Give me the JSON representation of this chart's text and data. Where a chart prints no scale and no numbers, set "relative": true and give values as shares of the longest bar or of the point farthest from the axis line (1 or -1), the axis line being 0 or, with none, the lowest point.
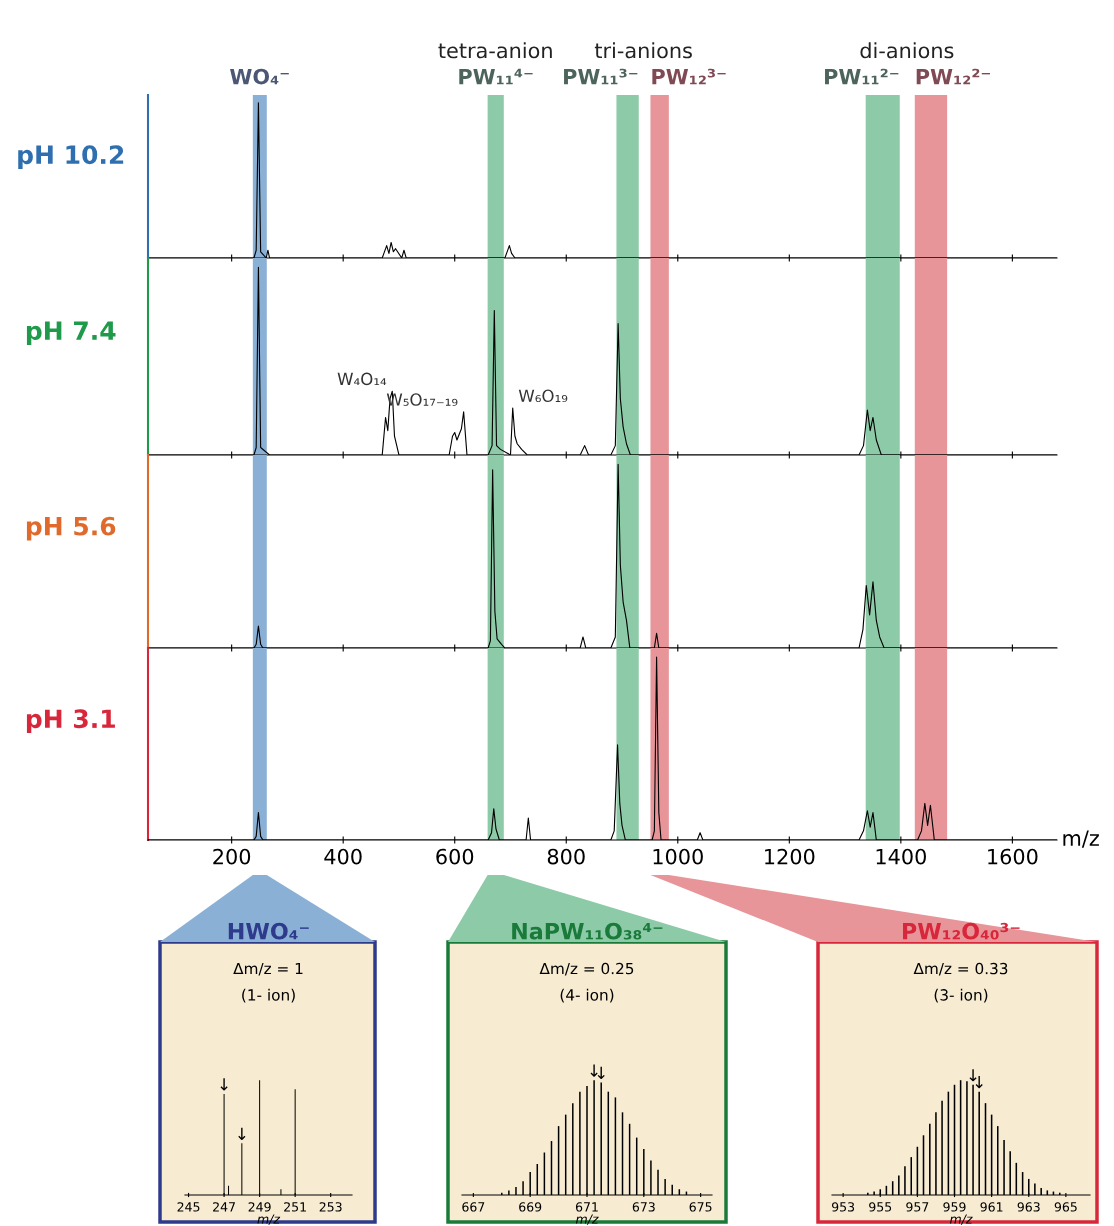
{
  "chart_data": [
    {
      "type": "line",
      "relative": true,
      "ylabel": "pH 10.2",
      "xlim": [
        50,
        1680
      ],
      "xticks": [
        200,
        400,
        600,
        800,
        1000,
        1200,
        1400,
        1600
      ],
      "tick_labels": false,
      "grid": false,
      "marker": "none",
      "line_style": "solid",
      "annotations": [
        "tetra-anion",
        "tri-anions",
        "di-anions"
      ],
      "bands": [
        {
          "axis": "x",
          "from": 238,
          "to": 263,
          "label": "WO₄⁻",
          "color": "#8ab0d6"
        },
        {
          "axis": "x",
          "from": 659,
          "to": 688,
          "label": "PW₁₁⁴⁻",
          "color": "#8ccaa8"
        },
        {
          "axis": "x",
          "from": 890,
          "to": 930,
          "label": "PW₁₁³⁻",
          "color": "#8ccaa8"
        },
        {
          "axis": "x",
          "from": 951,
          "to": 984,
          "label": "PW₁₂³⁻",
          "color": "#e8959a"
        },
        {
          "axis": "x",
          "from": 1337,
          "to": 1398,
          "label": "PW₁₁²⁻",
          "color": "#8ccaa8"
        },
        {
          "axis": "x",
          "from": 1425,
          "to": 1483,
          "label": "PW₁₂²⁻",
          "color": "#e8959a"
        }
      ],
      "series": [
        {
          "color": "#000000",
          "x": [
            50,
            240,
            244,
            248,
            252,
            262,
            265,
            268,
            470,
            478,
            482,
            486,
            490,
            494,
            505,
            509,
            513,
            690,
            698,
            702,
            708,
            1680
          ],
          "values": [
            0,
            0,
            0.05,
            1.0,
            0.04,
            0,
            0.05,
            0,
            0,
            0.08,
            0.03,
            0.1,
            0.04,
            0.06,
            0,
            0.05,
            0,
            0,
            0.08,
            0.03,
            0,
            0
          ]
        }
      ]
    },
    {
      "type": "line",
      "relative": true,
      "ylabel": "pH 7.4",
      "xlim": [
        50,
        1680
      ],
      "xticks": [
        200,
        400,
        600,
        800,
        1000,
        1200,
        1400,
        1600
      ],
      "tick_labels": false,
      "grid": false,
      "marker": "none",
      "line_style": "solid",
      "annotations": [
        {
          "text": "W₄O₁₄",
          "x": 488,
          "y": 0.34
        },
        {
          "text": "W₅O₁₇₋₁₉",
          "x": 616,
          "y": 0.23
        },
        {
          "text": "W₆O₁₉",
          "x": 704,
          "y": 0.25
        }
      ],
      "bands": [
        {
          "axis": "x",
          "from": 238,
          "to": 263,
          "color": "#8ab0d6"
        },
        {
          "axis": "x",
          "from": 659,
          "to": 688,
          "color": "#8ccaa8"
        },
        {
          "axis": "x",
          "from": 890,
          "to": 930,
          "color": "#8ccaa8"
        },
        {
          "axis": "x",
          "from": 951,
          "to": 984,
          "color": "#e8959a"
        },
        {
          "axis": "x",
          "from": 1337,
          "to": 1398,
          "color": "#8ccaa8"
        },
        {
          "axis": "x",
          "from": 1425,
          "to": 1483,
          "color": "#e8959a"
        }
      ],
      "series": [
        {
          "color": "#000000",
          "x": [
            50,
            240,
            244,
            248,
            252,
            268,
            470,
            476,
            480,
            484,
            488,
            492,
            500,
            590,
            596,
            600,
            604,
            612,
            616,
            622,
            660,
            667,
            671,
            675,
            682,
            700,
            704,
            708,
            712,
            720,
            730,
            825,
            833,
            840,
            880,
            888,
            893,
            897,
            902,
            908,
            915,
            1325,
            1333,
            1340,
            1345,
            1350,
            1356,
            1365,
            1680
          ],
          "values": [
            0,
            0,
            0.04,
            1.0,
            0.04,
            0,
            0,
            0.2,
            0.13,
            0.3,
            0.34,
            0.1,
            0,
            0,
            0.1,
            0.12,
            0.08,
            0.14,
            0.23,
            0,
            0,
            0.05,
            0.77,
            0.05,
            0.03,
            0,
            0.25,
            0.1,
            0.06,
            0.03,
            0,
            0,
            0.05,
            0,
            0,
            0.05,
            0.7,
            0.3,
            0.15,
            0.06,
            0,
            0,
            0.05,
            0.24,
            0.13,
            0.2,
            0.08,
            0,
            0
          ]
        }
      ]
    },
    {
      "type": "line",
      "relative": true,
      "ylabel": "pH 5.6",
      "xlim": [
        50,
        1680
      ],
      "xticks": [
        200,
        400,
        600,
        800,
        1000,
        1200,
        1400,
        1600
      ],
      "tick_labels": false,
      "grid": false,
      "marker": "none",
      "line_style": "solid",
      "bands": [
        {
          "axis": "x",
          "from": 238,
          "to": 263,
          "color": "#8ab0d6"
        },
        {
          "axis": "x",
          "from": 659,
          "to": 688,
          "color": "#8ccaa8"
        },
        {
          "axis": "x",
          "from": 890,
          "to": 930,
          "color": "#8ccaa8"
        },
        {
          "axis": "x",
          "from": 951,
          "to": 984,
          "color": "#e8959a"
        },
        {
          "axis": "x",
          "from": 1337,
          "to": 1398,
          "color": "#8ccaa8"
        },
        {
          "axis": "x",
          "from": 1425,
          "to": 1483,
          "color": "#e8959a"
        }
      ],
      "series": [
        {
          "color": "#000000",
          "x": [
            50,
            240,
            244,
            248,
            252,
            256,
            660,
            664,
            668,
            672,
            676,
            684,
            690,
            825,
            830,
            835,
            880,
            888,
            893,
            897,
            902,
            908,
            914,
            958,
            962,
            966,
            1325,
            1332,
            1338,
            1344,
            1350,
            1356,
            1362,
            1370,
            1680
          ],
          "values": [
            0,
            0,
            0.02,
            0.12,
            0.02,
            0,
            0,
            0.04,
            0.97,
            0.2,
            0.05,
            0.02,
            0,
            0,
            0.06,
            0,
            0,
            0.06,
            1.0,
            0.45,
            0.25,
            0.15,
            0,
            0,
            0.08,
            0,
            0,
            0.1,
            0.34,
            0.18,
            0.36,
            0.15,
            0.06,
            0,
            0
          ]
        }
      ]
    },
    {
      "type": "line",
      "relative": true,
      "ylabel": "pH 3.1",
      "xlabel": "m/z",
      "xlim": [
        50,
        1680
      ],
      "xticks": [
        200,
        400,
        600,
        800,
        1000,
        1200,
        1400,
        1600
      ],
      "tick_labels": "x",
      "grid": false,
      "marker": "none",
      "line_style": "solid",
      "bands": [
        {
          "axis": "x",
          "from": 238,
          "to": 263,
          "color": "#8ab0d6"
        },
        {
          "axis": "x",
          "from": 659,
          "to": 688,
          "color": "#8ccaa8"
        },
        {
          "axis": "x",
          "from": 890,
          "to": 930,
          "color": "#8ccaa8"
        },
        {
          "axis": "x",
          "from": 951,
          "to": 984,
          "color": "#e8959a"
        },
        {
          "axis": "x",
          "from": 1337,
          "to": 1398,
          "color": "#8ccaa8"
        },
        {
          "axis": "x",
          "from": 1425,
          "to": 1483,
          "color": "#e8959a"
        }
      ],
      "series": [
        {
          "color": "#000000",
          "x": [
            50,
            240,
            244,
            248,
            252,
            256,
            660,
            666,
            670,
            674,
            680,
            728,
            732,
            736,
            880,
            886,
            892,
            896,
            900,
            906,
            954,
            958,
            962,
            966,
            970,
            1035,
            1040,
            1045,
            1325,
            1333,
            1340,
            1345,
            1350,
            1356,
            1430,
            1437,
            1443,
            1448,
            1453,
            1460,
            1680
          ],
          "values": [
            0,
            0,
            0.02,
            0.15,
            0.02,
            0,
            0,
            0.04,
            0.17,
            0.06,
            0,
            0,
            0.12,
            0,
            0,
            0.05,
            0.52,
            0.2,
            0.08,
            0,
            0,
            0.05,
            1.0,
            0.15,
            0,
            0,
            0.04,
            0,
            0,
            0.05,
            0.16,
            0.07,
            0.15,
            0,
            0,
            0.05,
            0.2,
            0.08,
            0.19,
            0,
            0
          ]
        }
      ]
    },
    {
      "type": "bar",
      "relative": true,
      "title": "HWO₄⁻",
      "xlabel": "m/z",
      "xlim": [
        244.8,
        254.2
      ],
      "xticks": [
        245,
        247,
        249,
        251,
        253
      ],
      "tick_labels": "x",
      "grid": false,
      "annotations": [
        "Δm/z = 1",
        "(1- ion)",
        {
          "text": "↓",
          "x": 247,
          "y": 0.88
        },
        {
          "text": "↓",
          "x": 248,
          "y": 0.45
        }
      ],
      "series": [
        {
          "color": "#000000",
          "x": [
            247,
            247.25,
            248,
            249,
            250.2,
            251
          ],
          "values": [
            0.88,
            0.08,
            0.45,
            1.0,
            0.05,
            0.92
          ]
        }
      ]
    },
    {
      "type": "bar",
      "relative": true,
      "title": "NaPW₁₁O₃₈⁴⁻",
      "xlabel": "m/z",
      "xlim": [
        666.6,
        675.4
      ],
      "xticks": [
        667,
        669,
        671,
        673,
        675
      ],
      "tick_labels": "x",
      "grid": false,
      "annotations": [
        "Δm/z = 0.25",
        "(4- ion)",
        {
          "text": "↓",
          "x": 671.25,
          "y": 1.0
        },
        {
          "text": "↓",
          "x": 671.5,
          "y": 0.98
        }
      ],
      "series": [
        {
          "color": "#000000",
          "x": [
            668.0,
            668.25,
            668.5,
            668.75,
            669.0,
            669.25,
            669.5,
            669.75,
            670.0,
            670.25,
            670.5,
            670.75,
            671.0,
            671.25,
            671.5,
            671.75,
            672.0,
            672.25,
            672.5,
            672.75,
            673.0,
            673.25,
            673.5,
            673.75,
            674.0,
            674.25,
            674.5
          ],
          "values": [
            0.02,
            0.04,
            0.07,
            0.12,
            0.2,
            0.27,
            0.37,
            0.47,
            0.6,
            0.7,
            0.8,
            0.9,
            0.95,
            1.0,
            0.98,
            0.9,
            0.85,
            0.72,
            0.62,
            0.5,
            0.4,
            0.3,
            0.22,
            0.14,
            0.09,
            0.05,
            0.03
          ]
        }
      ]
    },
    {
      "type": "bar",
      "relative": true,
      "title": "PW₁₂O₄₀³⁻",
      "xlabel": "m/z",
      "xlim": [
        952.4,
        966.3
      ],
      "xticks": [
        953,
        955,
        957,
        959,
        961,
        963,
        965
      ],
      "tick_labels": "x",
      "grid": false,
      "annotations": [
        "Δm/z = 0.33",
        "(3- ion)",
        {
          "text": "↓",
          "x": 960.0,
          "y": 0.96
        },
        {
          "text": "↓",
          "x": 960.33,
          "y": 0.9
        }
      ],
      "series": [
        {
          "color": "#000000",
          "x": [
            954.33,
            954.67,
            955,
            955.33,
            955.67,
            956,
            956.33,
            956.67,
            957,
            957.33,
            957.67,
            958,
            958.33,
            958.67,
            959,
            959.33,
            959.67,
            960,
            960.33,
            960.67,
            961,
            961.33,
            961.67,
            962,
            962.33,
            962.67,
            963,
            963.33,
            963.67,
            964,
            964.33,
            964.67
          ],
          "values": [
            0.02,
            0.03,
            0.05,
            0.08,
            0.12,
            0.17,
            0.25,
            0.33,
            0.42,
            0.52,
            0.62,
            0.72,
            0.82,
            0.9,
            0.96,
            1.0,
            0.99,
            0.96,
            0.9,
            0.8,
            0.7,
            0.6,
            0.48,
            0.38,
            0.28,
            0.2,
            0.14,
            0.1,
            0.06,
            0.04,
            0.03,
            0.02
          ]
        }
      ]
    }
  ]
}
